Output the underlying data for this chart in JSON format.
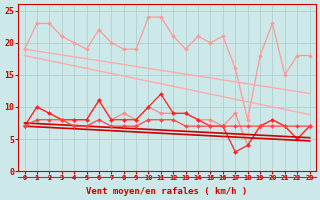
{
  "xlabel": "Vent moyen/en rafales ( km/h )",
  "background_color": "#cce8e8",
  "grid_color": "#aacccc",
  "x_values": [
    0,
    1,
    2,
    3,
    4,
    5,
    6,
    7,
    8,
    9,
    10,
    11,
    12,
    13,
    14,
    15,
    16,
    17,
    18,
    19,
    20,
    21,
    22,
    23
  ],
  "series": [
    {
      "color": "#ff9999",
      "linewidth": 0.9,
      "marker": "D",
      "markersize": 2.0,
      "data": [
        19,
        23,
        23,
        21,
        20,
        19,
        22,
        20,
        19,
        19,
        24,
        24,
        21,
        19,
        21,
        20,
        21,
        16,
        8,
        18,
        23,
        15,
        18,
        18
      ]
    },
    {
      "color": "#ffaaaa",
      "linewidth": 1.0,
      "marker": null,
      "markersize": 0,
      "data": [
        19,
        18.7,
        18.4,
        18.1,
        17.8,
        17.5,
        17.2,
        16.9,
        16.6,
        16.3,
        16.0,
        15.7,
        15.4,
        15.1,
        14.8,
        14.5,
        14.2,
        13.9,
        13.6,
        13.3,
        13.0,
        12.7,
        12.4,
        12.1
      ]
    },
    {
      "color": "#ffaaaa",
      "linewidth": 1.0,
      "marker": null,
      "markersize": 0,
      "data": [
        18,
        17.6,
        17.2,
        16.8,
        16.4,
        16.0,
        15.6,
        15.2,
        14.8,
        14.4,
        14.0,
        13.6,
        13.2,
        12.8,
        12.4,
        12.0,
        11.6,
        11.2,
        10.8,
        10.4,
        10.0,
        9.6,
        9.2,
        8.8
      ]
    },
    {
      "color": "#ff8888",
      "linewidth": 0.9,
      "marker": "D",
      "markersize": 2.0,
      "data": [
        7,
        10,
        9,
        8,
        8,
        8,
        11,
        8,
        9,
        8,
        10,
        9,
        9,
        9,
        8,
        8,
        7,
        9,
        4,
        7,
        8,
        7,
        5,
        7
      ]
    },
    {
      "color": "#ff2222",
      "linewidth": 0.9,
      "marker": "D",
      "markersize": 2.0,
      "data": [
        7,
        10,
        9,
        8,
        8,
        8,
        11,
        8,
        8,
        8,
        10,
        12,
        9,
        9,
        8,
        7,
        7,
        3,
        4,
        7,
        8,
        7,
        5,
        7
      ]
    },
    {
      "color": "#cc0000",
      "linewidth": 1.2,
      "marker": null,
      "markersize": 0,
      "data": [
        7.5,
        7.4,
        7.3,
        7.2,
        7.1,
        7.0,
        6.9,
        6.8,
        6.7,
        6.6,
        6.5,
        6.4,
        6.3,
        6.2,
        6.1,
        6.0,
        5.9,
        5.8,
        5.7,
        5.6,
        5.5,
        5.4,
        5.3,
        5.2
      ]
    },
    {
      "color": "#cc0000",
      "linewidth": 1.2,
      "marker": null,
      "markersize": 0,
      "data": [
        7.0,
        6.9,
        6.8,
        6.7,
        6.6,
        6.5,
        6.4,
        6.3,
        6.2,
        6.1,
        6.0,
        5.9,
        5.8,
        5.7,
        5.6,
        5.5,
        5.4,
        5.3,
        5.2,
        5.1,
        5.0,
        4.9,
        4.8,
        4.7
      ]
    },
    {
      "color": "#ff4444",
      "linewidth": 0.9,
      "marker": "D",
      "markersize": 2.0,
      "data": [
        7,
        8,
        8,
        8,
        7,
        7,
        8,
        7,
        7,
        7,
        8,
        8,
        8,
        7,
        7,
        7,
        7,
        7,
        7,
        7,
        7,
        7,
        7,
        7
      ]
    }
  ],
  "ylim": [
    0,
    26
  ],
  "yticks": [
    0,
    5,
    10,
    15,
    20,
    25
  ],
  "xlim": [
    -0.5,
    23.5
  ],
  "arrow_color": "#cc2222"
}
